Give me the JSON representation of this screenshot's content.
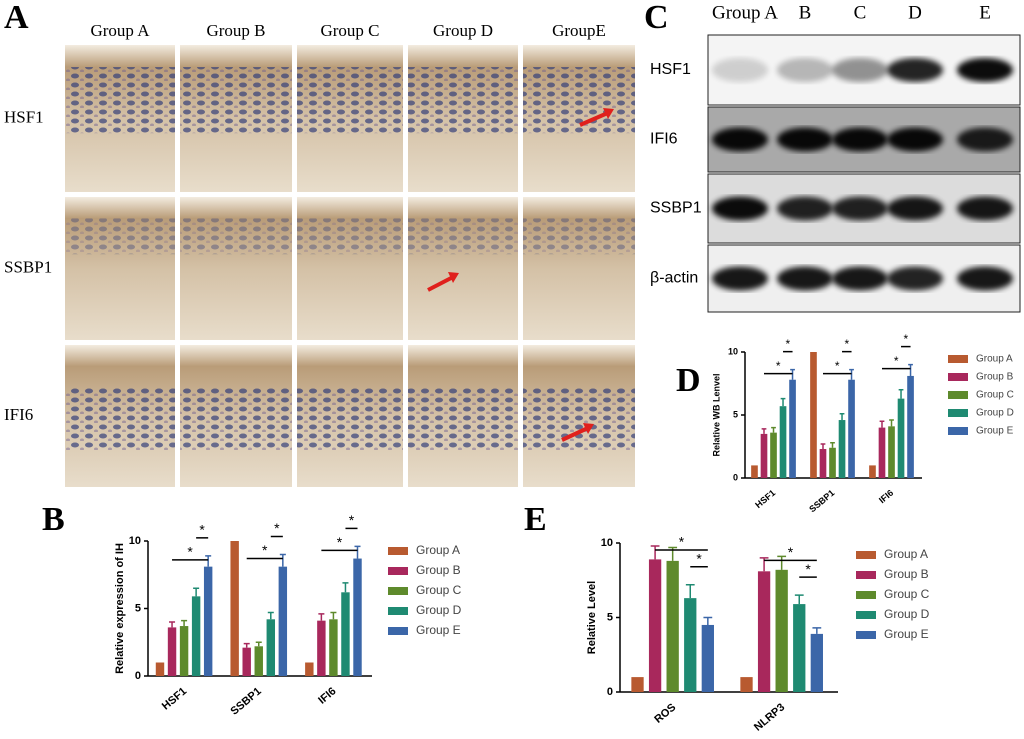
{
  "panel_a": {
    "letter": "A",
    "columns": [
      "Group A",
      "Group B",
      "Group C",
      "Group D",
      "GroupE"
    ],
    "rows": [
      "HSF1",
      "SSBP1",
      "IFI6"
    ]
  },
  "panel_c": {
    "letter": "C",
    "columns": [
      "Group A",
      "B",
      "C",
      "D",
      "E"
    ],
    "rows": [
      "HSF1",
      "IFI6",
      "SSBP1",
      "β-actin"
    ]
  },
  "chart_data": [
    {
      "type": "bar",
      "panel": "B",
      "ylabel": "Relative expression of IH",
      "categories": [
        "HSF1",
        "SSBP1",
        "IFI6"
      ],
      "ylim": [
        0,
        10
      ],
      "yticks": [
        0,
        5,
        10
      ],
      "series": [
        {
          "name": "Group A",
          "color": "#b85a30",
          "values": [
            1,
            10,
            1
          ],
          "errors": [
            0,
            0,
            0
          ]
        },
        {
          "name": "Group B",
          "color": "#a8285c",
          "values": [
            3.6,
            2.1,
            4.1
          ],
          "errors": [
            0.4,
            0.3,
            0.5
          ]
        },
        {
          "name": "Group C",
          "color": "#5e8a2c",
          "values": [
            3.7,
            2.2,
            4.2
          ],
          "errors": [
            0.4,
            0.3,
            0.5
          ]
        },
        {
          "name": "Group D",
          "color": "#1f8a72",
          "values": [
            5.9,
            4.2,
            6.2
          ],
          "errors": [
            0.6,
            0.5,
            0.7
          ]
        },
        {
          "name": "Group E",
          "color": "#3b66a8",
          "values": [
            8.1,
            8.1,
            8.7
          ],
          "errors": [
            0.8,
            0.9,
            0.9
          ]
        }
      ],
      "significance": [
        {
          "category": "HSF1",
          "between": [
            "Group D",
            "Group E"
          ],
          "label": "*"
        },
        {
          "category": "HSF1",
          "between": [
            "Group B",
            "Group E"
          ],
          "label": "*"
        },
        {
          "category": "SSBP1",
          "between": [
            "Group D",
            "Group E"
          ],
          "label": "*"
        },
        {
          "category": "SSBP1",
          "between": [
            "Group B",
            "Group E"
          ],
          "label": "*"
        },
        {
          "category": "IFI6",
          "between": [
            "Group D",
            "Group E"
          ],
          "label": "*"
        },
        {
          "category": "IFI6",
          "between": [
            "Group B",
            "Group E"
          ],
          "label": "*"
        }
      ]
    },
    {
      "type": "bar",
      "panel": "D",
      "ylabel": "Relative WB Lenvel",
      "categories": [
        "HSF1",
        "SSBP1",
        "IFI6"
      ],
      "ylim": [
        0,
        10
      ],
      "yticks": [
        0,
        5,
        10
      ],
      "series": [
        {
          "name": "Group A",
          "color": "#b85a30",
          "values": [
            1,
            10,
            1
          ],
          "errors": [
            0,
            0,
            0
          ]
        },
        {
          "name": "Group B",
          "color": "#a8285c",
          "values": [
            3.5,
            2.3,
            4.0
          ],
          "errors": [
            0.4,
            0.4,
            0.5
          ]
        },
        {
          "name": "Group C",
          "color": "#5e8a2c",
          "values": [
            3.6,
            2.4,
            4.1
          ],
          "errors": [
            0.4,
            0.4,
            0.5
          ]
        },
        {
          "name": "Group D",
          "color": "#1f8a72",
          "values": [
            5.7,
            4.6,
            6.3
          ],
          "errors": [
            0.6,
            0.5,
            0.7
          ]
        },
        {
          "name": "Group E",
          "color": "#3b66a8",
          "values": [
            7.8,
            7.8,
            8.1
          ],
          "errors": [
            0.8,
            0.8,
            0.9
          ]
        }
      ],
      "significance": [
        {
          "category": "HSF1",
          "between": [
            "Group D",
            "Group E"
          ],
          "label": "*"
        },
        {
          "category": "HSF1",
          "between": [
            "Group B",
            "Group E"
          ],
          "label": "*"
        },
        {
          "category": "SSBP1",
          "between": [
            "Group D",
            "Group E"
          ],
          "label": "*"
        },
        {
          "category": "SSBP1",
          "between": [
            "Group B",
            "Group E"
          ],
          "label": "*"
        },
        {
          "category": "IFI6",
          "between": [
            "Group D",
            "Group E"
          ],
          "label": "*"
        },
        {
          "category": "IFI6",
          "between": [
            "Group B",
            "Group E"
          ],
          "label": "*"
        }
      ]
    },
    {
      "type": "bar",
      "panel": "E",
      "ylabel": "Relative Level",
      "categories": [
        "ROS",
        "NLRP3"
      ],
      "ylim": [
        0,
        10
      ],
      "yticks": [
        0,
        5,
        10
      ],
      "series": [
        {
          "name": "Group A",
          "color": "#b85a30",
          "values": [
            1,
            1
          ],
          "errors": [
            0,
            0
          ]
        },
        {
          "name": "Group B",
          "color": "#a8285c",
          "values": [
            8.9,
            8.1
          ],
          "errors": [
            0.9,
            0.9
          ]
        },
        {
          "name": "Group C",
          "color": "#5e8a2c",
          "values": [
            8.8,
            8.2
          ],
          "errors": [
            0.9,
            0.9
          ]
        },
        {
          "name": "Group D",
          "color": "#1f8a72",
          "values": [
            6.3,
            5.9
          ],
          "errors": [
            0.9,
            0.6
          ]
        },
        {
          "name": "Group E",
          "color": "#3b66a8",
          "values": [
            4.5,
            3.9
          ],
          "errors": [
            0.5,
            0.4
          ]
        }
      ],
      "significance": [
        {
          "category": "ROS",
          "between": [
            "Group D",
            "Group E"
          ],
          "label": "*"
        },
        {
          "category": "ROS",
          "between": [
            "Group B",
            "Group E"
          ],
          "label": "*"
        },
        {
          "category": "NLRP3",
          "between": [
            "Group D",
            "Group E"
          ],
          "label": "*"
        },
        {
          "category": "NLRP3",
          "between": [
            "Group B",
            "Group E"
          ],
          "label": "*"
        }
      ]
    }
  ]
}
